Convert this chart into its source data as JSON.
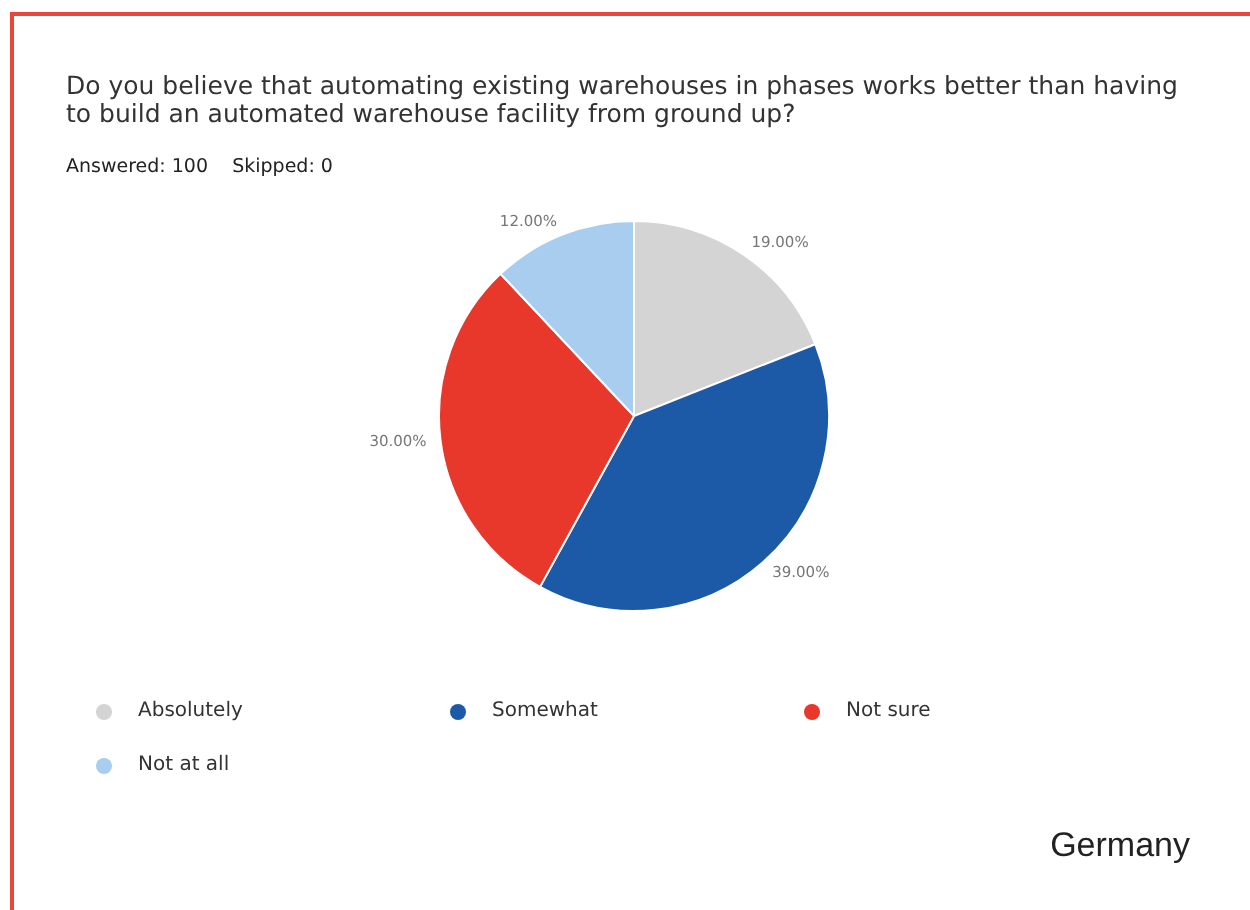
{
  "chart_data": {
    "type": "pie",
    "title": "Do you believe that automating existing warehouses in phases works better than having to build an automated warehouse facility from ground up?",
    "subtitle": "Answered: 100    Skipped: 0",
    "categories": [
      "Absolutely",
      "Somewhat",
      "Not sure",
      "Not at all"
    ],
    "values": [
      19,
      39,
      30,
      12
    ],
    "colors": [
      "#d4d4d4",
      "#1c5aa8",
      "#e8372b",
      "#a8cdef"
    ],
    "value_labels": [
      "19.00%",
      "39.00%",
      "30.00%",
      "12.00%"
    ],
    "legend": "bottom",
    "annotations": [
      "Germany"
    ]
  }
}
